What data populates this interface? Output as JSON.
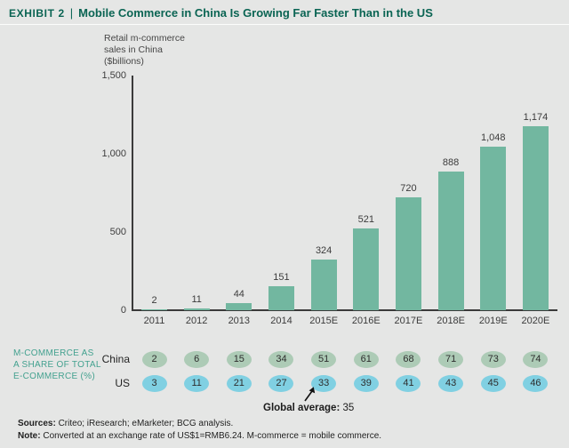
{
  "title": {
    "exhibit": "EXHIBIT 2",
    "separator": "|",
    "text": "Mobile Commerce in China Is Growing Far Faster Than in the US"
  },
  "chart_data": {
    "type": "bar",
    "title": "Retail m-commerce sales in China ($billions)",
    "axis_label": "Retail m-commerce\nsales in China\n($billions)",
    "categories": [
      "2011",
      "2012",
      "2013",
      "2014",
      "2015E",
      "2016E",
      "2017E",
      "2018E",
      "2019E",
      "2020E"
    ],
    "values": [
      2,
      11,
      44,
      151,
      324,
      521,
      720,
      888,
      1048,
      1174
    ],
    "value_labels": [
      "2",
      "11",
      "44",
      "151",
      "324",
      "521",
      "720",
      "888",
      "1,048",
      "1,174"
    ],
    "ylim": [
      0,
      1500
    ],
    "yticks": [
      0,
      500,
      1000,
      1500
    ],
    "ytick_labels": [
      "0",
      "500",
      "1,000",
      "1,500"
    ],
    "grid": false,
    "legend": null,
    "bar_color": "#72b7a0",
    "share_table": {
      "label": "M-COMMERCE AS\nA SHARE OF TOTAL\nE-COMMERCE (%)",
      "rows": [
        {
          "name": "China",
          "values": [
            2,
            6,
            15,
            34,
            51,
            61,
            68,
            71,
            73,
            74
          ],
          "color": "#adcbb6"
        },
        {
          "name": "US",
          "values": [
            3,
            11,
            21,
            27,
            33,
            39,
            41,
            43,
            45,
            46
          ],
          "color": "#80d0e2"
        }
      ],
      "annotation": {
        "label": "Global average:",
        "value": "35",
        "points_to": "US 2015E"
      }
    }
  },
  "footer": {
    "sources_label": "Sources:",
    "sources_text": " Criteo; iResearch; eMarketer; BCG analysis.",
    "note_label": "Note:",
    "note_text": " Converted at an exchange rate of US$1=RMB6.24. M-commerce = mobile commerce."
  },
  "colors": {
    "background": "#e5e6e5",
    "title": "#0a6453",
    "bar": "#72b7a0",
    "china_oval": "#adcbb6",
    "us_oval": "#80d0e2",
    "share_label": "#43a18f",
    "axis": "#3a3a3a"
  }
}
